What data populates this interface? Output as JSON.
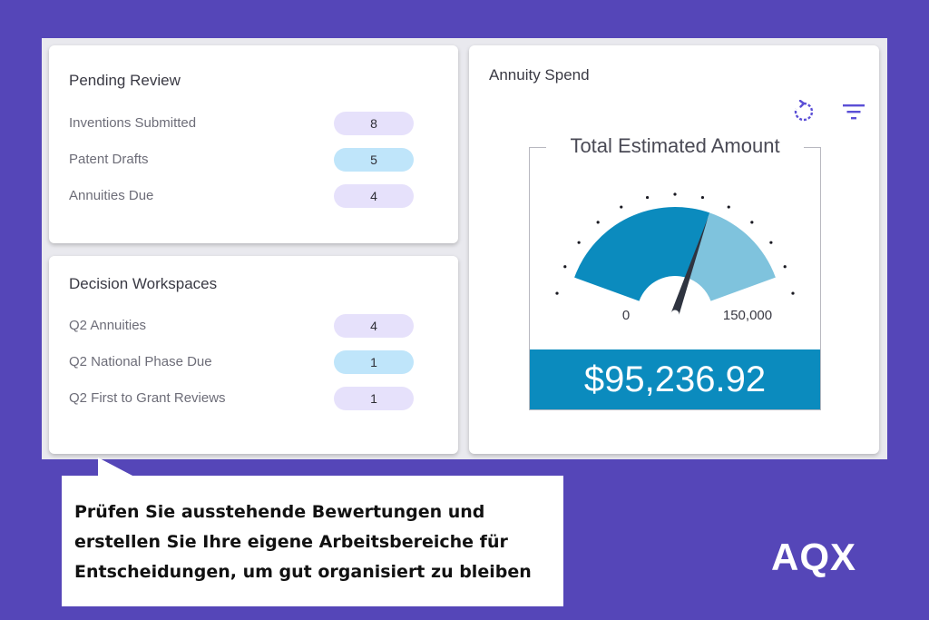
{
  "pending_review": {
    "title": "Pending Review",
    "items": [
      {
        "label": "Inventions Submitted",
        "count": "8",
        "style": "lavender"
      },
      {
        "label": "Patent Drafts",
        "count": "5",
        "style": "blue"
      },
      {
        "label": "Annuities Due",
        "count": "4",
        "style": "lavender"
      }
    ]
  },
  "decision_workspaces": {
    "title": "Decision Workspaces",
    "items": [
      {
        "label": "Q2 Annuities",
        "count": "4",
        "style": "lavender"
      },
      {
        "label": "Q2 National Phase Due",
        "count": "1",
        "style": "blue"
      },
      {
        "label": "Q2 First to Grant Reviews",
        "count": "1",
        "style": "lavender"
      }
    ]
  },
  "annuity_spend": {
    "title": "Annuity Spend",
    "icons": {
      "refresh": "refresh-icon",
      "filter": "filter-icon"
    },
    "gauge": {
      "legend": "Total Estimated Amount",
      "min_label": "0",
      "max_label": "150,000",
      "min": 0,
      "max": 150000,
      "value": 95236.92,
      "amount_text": "$95,236.92",
      "colors": {
        "filled": "#0b8bbe",
        "remaining": "#7fc3dd",
        "needle": "#2f3440",
        "band": "#0b8bbe"
      }
    }
  },
  "caption": {
    "text": "Prüfen Sie ausstehende Bewertungen und erstellen Sie Ihre eigene Arbeitsbereiche für Entscheidungen, um gut organisiert zu bleiben"
  },
  "logo": {
    "text": "AQX"
  },
  "colors": {
    "background": "#5546b8",
    "pill_lavender": "#e6e1fb",
    "pill_blue": "#bfe5fa"
  }
}
